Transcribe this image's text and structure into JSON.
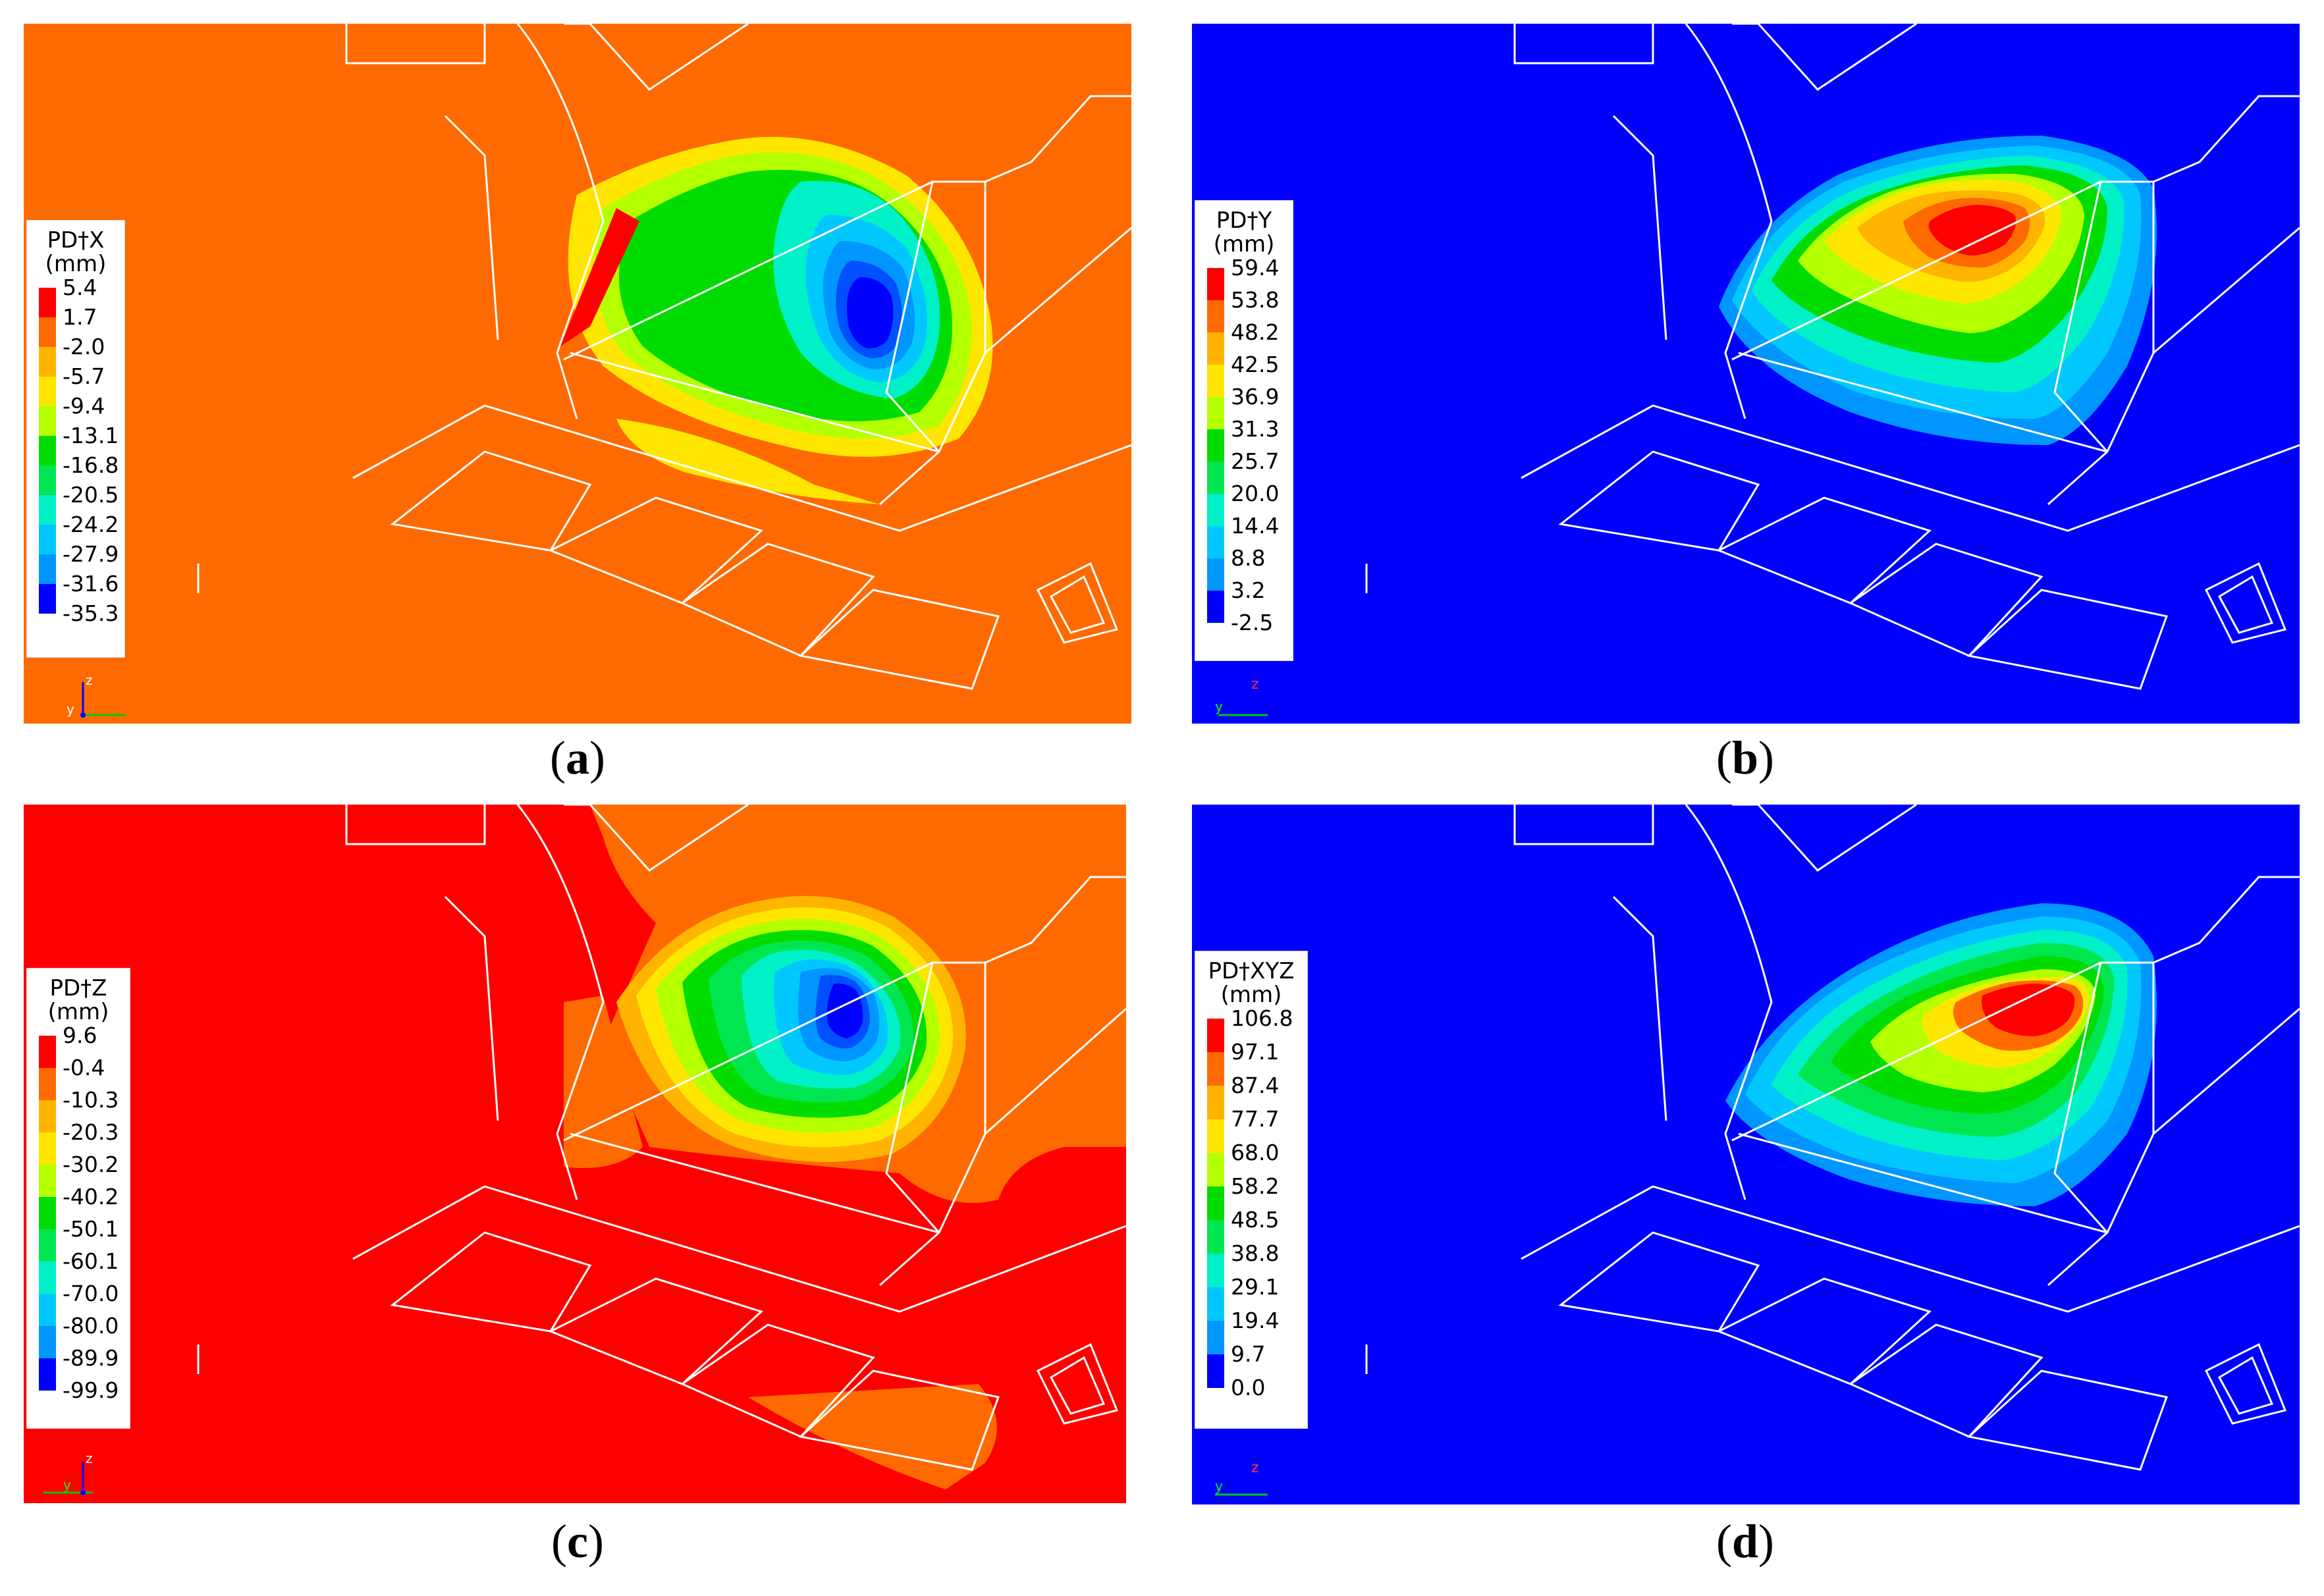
{
  "panels": [
    {
      "id": "a",
      "caption_letter": "a",
      "legend_title_line1": "PD†X",
      "legend_title_line2": "(mm)",
      "background": "#ff6a00",
      "ticks": [
        "5.4",
        "1.7",
        "-2.0",
        "-5.7",
        "-9.4",
        "-13.1",
        "-16.8",
        "-20.5",
        "-24.2",
        "-27.9",
        "-31.6",
        "-35.3"
      ],
      "axis_labels": [
        "z",
        "y"
      ]
    },
    {
      "id": "b",
      "caption_letter": "b",
      "legend_title_line1": "PD†Y",
      "legend_title_line2": "(mm)",
      "background": "#0000ff",
      "ticks": [
        "59.4",
        "53.8",
        "48.2",
        "42.5",
        "36.9",
        "31.3",
        "25.7",
        "20.0",
        "14.4",
        "8.8",
        "3.2",
        "-2.5"
      ],
      "axis_labels": [
        "z",
        "y"
      ]
    },
    {
      "id": "c",
      "caption_letter": "c",
      "legend_title_line1": "PD†Z",
      "legend_title_line2": "(mm)",
      "background": "#ff0000",
      "ticks": [
        "9.6",
        "-0.4",
        "-10.3",
        "-20.3",
        "-30.2",
        "-40.2",
        "-50.1",
        "-60.1",
        "-70.0",
        "-80.0",
        "-89.9",
        "-99.9"
      ],
      "axis_labels": [
        "z",
        "y"
      ]
    },
    {
      "id": "d",
      "caption_letter": "d",
      "legend_title_line1": "PD†XYZ",
      "legend_title_line2": "(mm)",
      "background": "#0000ff",
      "ticks": [
        "106.8",
        "97.1",
        "87.4",
        "77.7",
        "68.0",
        "58.2",
        "48.5",
        "38.8",
        "29.1",
        "19.4",
        "9.7",
        "0.0"
      ],
      "axis_labels": [
        "z",
        "y"
      ]
    }
  ],
  "colormap": [
    "#ff0000",
    "#ff6a00",
    "#ffb400",
    "#ffe600",
    "#b4ff00",
    "#00dc00",
    "#00e650",
    "#00f0c8",
    "#00c8ff",
    "#0096ff",
    "#0050ff",
    "#0000ff"
  ]
}
